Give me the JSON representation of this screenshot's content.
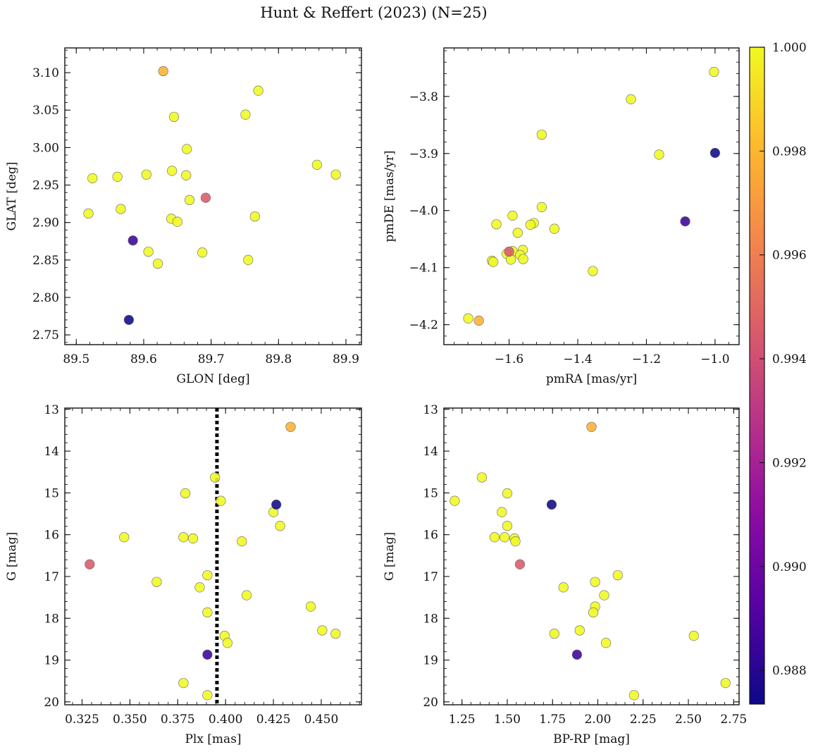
{
  "title": "Hunt & Reffert (2023) (N=25)",
  "colorbar": {
    "min": 0.98735,
    "max": 1.0,
    "ticks": [
      0.988,
      0.99,
      0.992,
      0.994,
      0.996,
      0.998,
      1.0
    ],
    "tick_labels": [
      "0.988",
      "0.990",
      "0.992",
      "0.994",
      "0.996",
      "0.998",
      "1.000"
    ],
    "colormap": "plasma"
  },
  "chart_data": [
    {
      "type": "scatter",
      "xlabel": "GLON [deg]",
      "ylabel": "GLAT [deg]",
      "xlim": [
        89.483,
        89.923
      ],
      "ylim": [
        2.737,
        3.133
      ],
      "y_inverted": false,
      "xticks": [
        89.5,
        89.6,
        89.7,
        89.8,
        89.9
      ],
      "xtick_labels": [
        "89.5",
        "89.6",
        "89.7",
        "89.8",
        "89.9"
      ],
      "yticks": [
        2.75,
        2.8,
        2.85,
        2.9,
        2.95,
        3.0,
        3.05,
        3.1
      ],
      "ytick_labels": [
        "2.75",
        "2.80",
        "2.85",
        "2.90",
        "2.95",
        "3.00",
        "3.05",
        "3.10"
      ],
      "points": [
        {
          "x": 89.629,
          "y": 3.102,
          "p": 0.9978
        },
        {
          "x": 89.77,
          "y": 3.076,
          "p": 1.0
        },
        {
          "x": 89.645,
          "y": 3.041,
          "p": 1.0
        },
        {
          "x": 89.751,
          "y": 3.044,
          "p": 1.0
        },
        {
          "x": 89.664,
          "y": 2.998,
          "p": 1.0
        },
        {
          "x": 89.857,
          "y": 2.977,
          "p": 1.0
        },
        {
          "x": 89.885,
          "y": 2.964,
          "p": 1.0
        },
        {
          "x": 89.524,
          "y": 2.959,
          "p": 1.0
        },
        {
          "x": 89.561,
          "y": 2.961,
          "p": 1.0
        },
        {
          "x": 89.604,
          "y": 2.964,
          "p": 1.0
        },
        {
          "x": 89.642,
          "y": 2.969,
          "p": 1.0
        },
        {
          "x": 89.663,
          "y": 2.963,
          "p": 1.0
        },
        {
          "x": 89.668,
          "y": 2.93,
          "p": 1.0
        },
        {
          "x": 89.692,
          "y": 2.933,
          "p": 0.9945
        },
        {
          "x": 89.566,
          "y": 2.918,
          "p": 1.0
        },
        {
          "x": 89.518,
          "y": 2.912,
          "p": 1.0
        },
        {
          "x": 89.641,
          "y": 2.905,
          "p": 1.0
        },
        {
          "x": 89.65,
          "y": 2.901,
          "p": 1.0
        },
        {
          "x": 89.765,
          "y": 2.908,
          "p": 1.0
        },
        {
          "x": 89.584,
          "y": 2.876,
          "p": 0.9885
        },
        {
          "x": 89.607,
          "y": 2.861,
          "p": 1.0
        },
        {
          "x": 89.687,
          "y": 2.86,
          "p": 1.0
        },
        {
          "x": 89.621,
          "y": 2.845,
          "p": 1.0
        },
        {
          "x": 89.755,
          "y": 2.85,
          "p": 1.0
        },
        {
          "x": 89.578,
          "y": 2.77,
          "p": 0.9874
        }
      ]
    },
    {
      "type": "scatter",
      "xlabel": "pmRA [mas/yr]",
      "ylabel": "pmDE [mas/yr]",
      "xlim": [
        -1.79,
        -0.93
      ],
      "ylim": [
        -4.235,
        -3.715
      ],
      "y_inverted": false,
      "xticks": [
        -1.6,
        -1.4,
        -1.2,
        -1.0
      ],
      "xtick_labels": [
        "−1.6",
        "−1.4",
        "−1.2",
        "−1.0"
      ],
      "yticks": [
        -4.2,
        -4.1,
        -4.0,
        -3.9,
        -3.8
      ],
      "ytick_labels": [
        "−4.2",
        "−4.1",
        "−4.0",
        "−3.9",
        "−3.8"
      ],
      "points": [
        {
          "x": -1.003,
          "y": -3.757,
          "p": 1.0
        },
        {
          "x": -1.245,
          "y": -3.805,
          "p": 1.0
        },
        {
          "x": -1.505,
          "y": -3.867,
          "p": 1.0
        },
        {
          "x": -1.163,
          "y": -3.902,
          "p": 1.0
        },
        {
          "x": -1.0,
          "y": -3.899,
          "p": 0.9874
        },
        {
          "x": -1.505,
          "y": -3.994,
          "p": 1.0
        },
        {
          "x": -1.59,
          "y": -4.009,
          "p": 1.0
        },
        {
          "x": -1.087,
          "y": -4.019,
          "p": 0.9885
        },
        {
          "x": -1.528,
          "y": -4.022,
          "p": 1.0
        },
        {
          "x": -1.538,
          "y": -4.025,
          "p": 1.0
        },
        {
          "x": -1.637,
          "y": -4.024,
          "p": 1.0
        },
        {
          "x": -1.468,
          "y": -4.032,
          "p": 1.0
        },
        {
          "x": -1.575,
          "y": -4.039,
          "p": 1.0
        },
        {
          "x": -1.56,
          "y": -4.069,
          "p": 1.0
        },
        {
          "x": -1.59,
          "y": -4.071,
          "p": 1.0
        },
        {
          "x": -1.607,
          "y": -4.076,
          "p": 1.0
        },
        {
          "x": -1.568,
          "y": -4.078,
          "p": 1.0
        },
        {
          "x": -1.559,
          "y": -4.085,
          "p": 1.0
        },
        {
          "x": -1.595,
          "y": -4.086,
          "p": 1.0
        },
        {
          "x": -1.65,
          "y": -4.088,
          "p": 1.0
        },
        {
          "x": -1.646,
          "y": -4.09,
          "p": 1.0
        },
        {
          "x": -1.356,
          "y": -4.106,
          "p": 1.0
        },
        {
          "x": -1.719,
          "y": -4.189,
          "p": 1.0
        },
        {
          "x": -1.688,
          "y": -4.193,
          "p": 0.9978
        },
        {
          "x": -1.6,
          "y": -4.072,
          "p": 0.9945
        }
      ]
    },
    {
      "type": "scatter",
      "xlabel": "Plx [mas]",
      "ylabel": "G [mag]",
      "xlim": [
        0.316,
        0.471
      ],
      "ylim": [
        20.07,
        12.97
      ],
      "y_inverted": true,
      "xticks": [
        0.325,
        0.35,
        0.375,
        0.4,
        0.425,
        0.45
      ],
      "xtick_labels": [
        "0.325",
        "0.350",
        "0.375",
        "0.400",
        "0.425",
        "0.450"
      ],
      "yticks": [
        13,
        14,
        15,
        16,
        17,
        18,
        19,
        20
      ],
      "ytick_labels": [
        "13",
        "14",
        "15",
        "16",
        "17",
        "18",
        "19",
        "20"
      ],
      "vline": {
        "x": 0.3955,
        "style": "dotted"
      },
      "points": [
        {
          "x": 0.434,
          "y": 13.42,
          "p": 0.9978
        },
        {
          "x": 0.3945,
          "y": 14.63,
          "p": 1.0
        },
        {
          "x": 0.379,
          "y": 15.01,
          "p": 1.0
        },
        {
          "x": 0.3975,
          "y": 15.19,
          "p": 1.0
        },
        {
          "x": 0.4265,
          "y": 15.28,
          "p": 0.9874
        },
        {
          "x": 0.425,
          "y": 15.46,
          "p": 1.0
        },
        {
          "x": 0.4285,
          "y": 15.79,
          "p": 1.0
        },
        {
          "x": 0.347,
          "y": 16.06,
          "p": 1.0
        },
        {
          "x": 0.378,
          "y": 16.06,
          "p": 1.0
        },
        {
          "x": 0.383,
          "y": 16.09,
          "p": 1.0
        },
        {
          "x": 0.4085,
          "y": 16.16,
          "p": 1.0
        },
        {
          "x": 0.329,
          "y": 16.71,
          "p": 0.9945
        },
        {
          "x": 0.3905,
          "y": 16.97,
          "p": 1.0
        },
        {
          "x": 0.364,
          "y": 17.13,
          "p": 1.0
        },
        {
          "x": 0.3865,
          "y": 17.26,
          "p": 1.0
        },
        {
          "x": 0.411,
          "y": 17.45,
          "p": 1.0
        },
        {
          "x": 0.4445,
          "y": 17.72,
          "p": 1.0
        },
        {
          "x": 0.3905,
          "y": 17.86,
          "p": 1.0
        },
        {
          "x": 0.4505,
          "y": 18.29,
          "p": 1.0
        },
        {
          "x": 0.4575,
          "y": 18.37,
          "p": 1.0
        },
        {
          "x": 0.3995,
          "y": 18.42,
          "p": 1.0
        },
        {
          "x": 0.401,
          "y": 18.59,
          "p": 1.0
        },
        {
          "x": 0.3905,
          "y": 18.87,
          "p": 0.9885
        },
        {
          "x": 0.378,
          "y": 19.55,
          "p": 1.0
        },
        {
          "x": 0.3905,
          "y": 19.84,
          "p": 1.0
        }
      ]
    },
    {
      "type": "scatter",
      "xlabel": "BP-RP [mag]",
      "ylabel": "G [mag]",
      "xlim": [
        1.15,
        2.78
      ],
      "ylim": [
        20.07,
        12.97
      ],
      "y_inverted": true,
      "xticks": [
        1.25,
        1.5,
        1.75,
        2.0,
        2.25,
        2.5,
        2.75
      ],
      "xtick_labels": [
        "1.25",
        "1.50",
        "1.75",
        "2.00",
        "2.25",
        "2.50",
        "2.75"
      ],
      "yticks": [
        13,
        14,
        15,
        16,
        17,
        18,
        19,
        20
      ],
      "ytick_labels": [
        "13",
        "14",
        "15",
        "16",
        "17",
        "18",
        "19",
        "20"
      ],
      "points": [
        {
          "x": 1.965,
          "y": 13.42,
          "p": 0.9978
        },
        {
          "x": 1.36,
          "y": 14.63,
          "p": 1.0
        },
        {
          "x": 1.5,
          "y": 15.01,
          "p": 1.0
        },
        {
          "x": 1.21,
          "y": 15.19,
          "p": 1.0
        },
        {
          "x": 1.745,
          "y": 15.28,
          "p": 0.9874
        },
        {
          "x": 1.47,
          "y": 15.46,
          "p": 1.0
        },
        {
          "x": 1.5,
          "y": 15.79,
          "p": 1.0
        },
        {
          "x": 1.43,
          "y": 16.06,
          "p": 1.0
        },
        {
          "x": 1.485,
          "y": 16.06,
          "p": 1.0
        },
        {
          "x": 1.54,
          "y": 16.09,
          "p": 1.0
        },
        {
          "x": 1.545,
          "y": 16.16,
          "p": 1.0
        },
        {
          "x": 1.57,
          "y": 16.71,
          "p": 0.9945
        },
        {
          "x": 2.11,
          "y": 16.97,
          "p": 1.0
        },
        {
          "x": 1.985,
          "y": 17.13,
          "p": 1.0
        },
        {
          "x": 1.81,
          "y": 17.26,
          "p": 1.0
        },
        {
          "x": 2.035,
          "y": 17.45,
          "p": 1.0
        },
        {
          "x": 1.985,
          "y": 17.72,
          "p": 1.0
        },
        {
          "x": 1.975,
          "y": 17.86,
          "p": 1.0
        },
        {
          "x": 1.9,
          "y": 18.29,
          "p": 1.0
        },
        {
          "x": 1.76,
          "y": 18.37,
          "p": 1.0
        },
        {
          "x": 2.53,
          "y": 18.42,
          "p": 1.0
        },
        {
          "x": 2.045,
          "y": 18.59,
          "p": 1.0
        },
        {
          "x": 1.885,
          "y": 18.87,
          "p": 0.9885
        },
        {
          "x": 2.705,
          "y": 19.55,
          "p": 1.0
        },
        {
          "x": 2.2,
          "y": 19.84,
          "p": 1.0
        }
      ]
    }
  ]
}
